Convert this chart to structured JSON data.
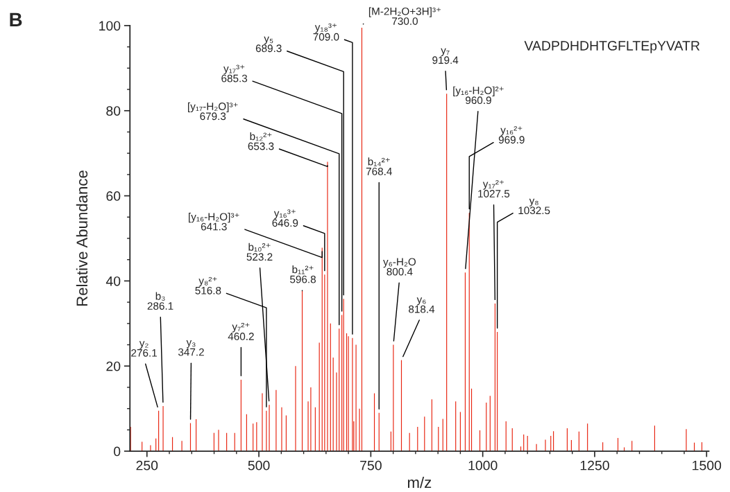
{
  "chart_data": {
    "type": "bar",
    "xlabel": "m/z",
    "ylabel": "Relative Abundance",
    "color": "#e8230f",
    "xlim": [
      212,
      1505
    ],
    "ylim": [
      0,
      100
    ],
    "xticks": [
      250,
      {
        "value": 300,
        "label": null
      },
      {
        "value": 350,
        "label": null
      },
      {
        "value": 400,
        "label": null
      },
      {
        "value": 450,
        "label": null
      },
      500,
      {
        "value": 550,
        "label": null
      },
      {
        "value": 600,
        "label": null
      },
      {
        "value": 650,
        "label": null
      },
      {
        "value": 700,
        "label": null
      },
      750,
      {
        "value": 800,
        "label": null
      },
      {
        "value": 850,
        "label": null
      },
      {
        "value": 900,
        "label": null
      },
      {
        "value": 950,
        "label": null
      },
      1000,
      {
        "value": 1050,
        "label": null
      },
      {
        "value": 1100,
        "label": null
      },
      {
        "value": 1150,
        "label": null
      },
      {
        "value": 1200,
        "label": null
      },
      1250,
      {
        "value": 1300,
        "label": null
      },
      {
        "value": 1350,
        "label": null
      },
      {
        "value": 1400,
        "label": null
      },
      {
        "value": 1450,
        "label": null
      },
      1500
    ],
    "yticks": [
      0,
      {
        "value": 5,
        "label": null
      },
      {
        "value": 10,
        "label": null
      },
      {
        "value": 15,
        "label": null
      },
      20,
      {
        "value": 25,
        "label": null
      },
      {
        "value": 30,
        "label": null
      },
      {
        "value": 35,
        "label": null
      },
      40,
      {
        "value": 45,
        "label": null
      },
      {
        "value": 50,
        "label": null
      },
      {
        "value": 55,
        "label": null
      },
      60,
      {
        "value": 65,
        "label": null
      },
      {
        "value": 70,
        "label": null
      },
      {
        "value": 75,
        "label": null
      },
      80,
      {
        "value": 85,
        "label": null
      },
      {
        "value": 90,
        "label": null
      },
      {
        "value": 95,
        "label": null
      },
      100
    ],
    "x": [
      213.5,
      239,
      258,
      270,
      276.1,
      286.1,
      307,
      328,
      347.2,
      359.8,
      399.8,
      410,
      428,
      446,
      460.2,
      472.6,
      487,
      495,
      507.6,
      516.8,
      523.2,
      538.5,
      551,
      561,
      582,
      596.8,
      610,
      616,
      626,
      635,
      641.3,
      646.9,
      653.3,
      660,
      666,
      673.5,
      679.3,
      685.3,
      689.3,
      696,
      700,
      709.0,
      712,
      717,
      724.7,
      730.0,
      758,
      768.4,
      795,
      800.4,
      818.4,
      836.5,
      854.5,
      870,
      886.4,
      901,
      911,
      919.4,
      939.6,
      950,
      960.9,
      969.9,
      975,
      993.6,
      1008,
      1016.5,
      1027.5,
      1032.5,
      1052,
      1066,
      1085,
      1091.5,
      1100,
      1120,
      1140,
      1152,
      1158,
      1188.7,
      1198,
      1215,
      1234,
      1268.1,
      1302,
      1316,
      1333.3,
      1384,
      1454.6,
      1472.6,
      1489.5
    ],
    "values": [
      5.7,
      2.2,
      1.4,
      3,
      9.5,
      10.6,
      3.3,
      2.4,
      6.6,
      7.5,
      4.3,
      5,
      4.3,
      4.3,
      16.8,
      8.7,
      6.5,
      6.8,
      13.6,
      9.5,
      10.9,
      14.4,
      10.3,
      8.4,
      20,
      37.7,
      11.7,
      15,
      10.3,
      25.5,
      47.8,
      41.5,
      68,
      30,
      22,
      18.5,
      28.8,
      32,
      35.8,
      27.7,
      27,
      26.6,
      7,
      25,
      10,
      99.5,
      13.6,
      9,
      4.6,
      25,
      21.4,
      4.3,
      5.7,
      8.1,
      12.2,
      5.7,
      7.6,
      84,
      11.7,
      9.2,
      42,
      56,
      14.7,
      4.9,
      11.4,
      13,
      34.7,
      28,
      7,
      5.4,
      1.1,
      3.9,
      3.6,
      1.7,
      2.7,
      3.6,
      4.7,
      5.4,
      2.6,
      4.6,
      6.5,
      2.1,
      3.1,
      0.9,
      2.4,
      6,
      5.2,
      2,
      2.1
    ],
    "annotations": [
      "B",
      "VADPDHDHTGFLTEpYVATR",
      {
        "text": "y₂\n276.1",
        "x": 276.1,
        "y": 9.5
      },
      {
        "text": "b₃\n286.1",
        "x": 286.1,
        "y": 10.6
      },
      {
        "text": "y₃\n347.2",
        "x": 347.2,
        "y": 6.6
      },
      {
        "text": "y₇²⁺\n460.2",
        "x": 460.2,
        "y": 16.8
      },
      {
        "text": "y₈²⁺\n516.8",
        "x": 516.8,
        "y": 9.5
      },
      {
        "text": "b₁₀²⁺\n523.2",
        "x": 523.2,
        "y": 10.9
      },
      {
        "text": "b₁₁²⁺\n596.8",
        "x": 596.8,
        "y": 37.7
      },
      {
        "text": "[y₁₆-H₂O]³⁺\n641.3",
        "x": 641.3,
        "y": 47.8
      },
      {
        "text": "y₁₆³⁺\n646.9",
        "x": 646.9,
        "y": 41.5
      },
      {
        "text": "b₁₂²⁺\n653.3",
        "x": 653.3,
        "y": 68
      },
      {
        "text": "[y₁₇-H₂O]³⁺\n679.3",
        "x": 679.3,
        "y": 28.8
      },
      {
        "text": "y₁₇³⁺\n685.3",
        "x": 685.3,
        "y": 32
      },
      {
        "text": "y₅\n689.3",
        "x": 689.3,
        "y": 35.8
      },
      {
        "text": "y₁₈³⁺\n709.0",
        "x": 709.0,
        "y": 26.6
      },
      {
        "text": "[M-2H₂O+3H]³⁺\n730.0",
        "x": 730.0,
        "y": 99.5
      },
      {
        "text": "b₁₄²⁺\n768.4",
        "x": 768.4,
        "y": 9
      },
      {
        "text": "y₆-H₂O\n800.4",
        "x": 800.4,
        "y": 25
      },
      {
        "text": "y₆\n818.4",
        "x": 818.4,
        "y": 21.4
      },
      {
        "text": "y₇\n919.4",
        "x": 919.4,
        "y": 84
      },
      {
        "text": "[y₁₆-H₂O]²⁺\n960.9",
        "x": 960.9,
        "y": 42
      },
      {
        "text": "y₁₆²⁺\n969.9",
        "x": 969.9,
        "y": 56
      },
      {
        "text": "y₁₇²⁺\n1027.5",
        "x": 1027.5,
        "y": 34.7
      },
      {
        "text": "y₈\n1032.5",
        "x": 1032.5,
        "y": 28
      }
    ]
  }
}
